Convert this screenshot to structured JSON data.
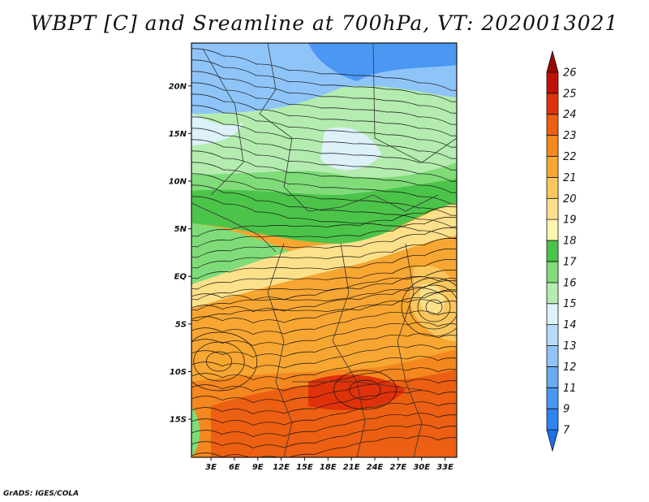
{
  "title": "WBPT [C] and Sreamline at 700hPa, VT: 2020013021",
  "credit": "GrADS: IGES/COLA",
  "map": {
    "lat_labels": [
      "20N",
      "15N",
      "10N",
      "5N",
      "EQ",
      "5S",
      "10S",
      "15S"
    ],
    "lat_values": [
      20,
      15,
      10,
      5,
      0,
      -5,
      -10,
      -15
    ],
    "lon_labels": [
      "3E",
      "6E",
      "9E",
      "12E",
      "15E",
      "18E",
      "21E",
      "24E",
      "27E",
      "30E",
      "33E"
    ],
    "lon_values": [
      3,
      6,
      9,
      12,
      15,
      18,
      21,
      24,
      27,
      30,
      33
    ],
    "lon_range": [
      0.5,
      34.5
    ],
    "lat_range": [
      -19,
      24.5
    ]
  },
  "colorbar": {
    "labels": [
      "7",
      "9",
      "11",
      "12",
      "13",
      "14",
      "15",
      "16",
      "17",
      "18",
      "19",
      "20",
      "21",
      "22",
      "23",
      "24",
      "25",
      "26"
    ],
    "colors": [
      "#1e6fe8",
      "#2e84f2",
      "#4a98f4",
      "#69abf6",
      "#8fc4f8",
      "#b6dafa",
      "#dcf1f8",
      "#b4ecb0",
      "#7fdc78",
      "#4cc44a",
      "#fdf5b0",
      "#fde08a",
      "#fbc65c",
      "#f7a632",
      "#f4871e",
      "#ed5f12",
      "#e0320a",
      "#c01008",
      "#9a0804"
    ]
  }
}
